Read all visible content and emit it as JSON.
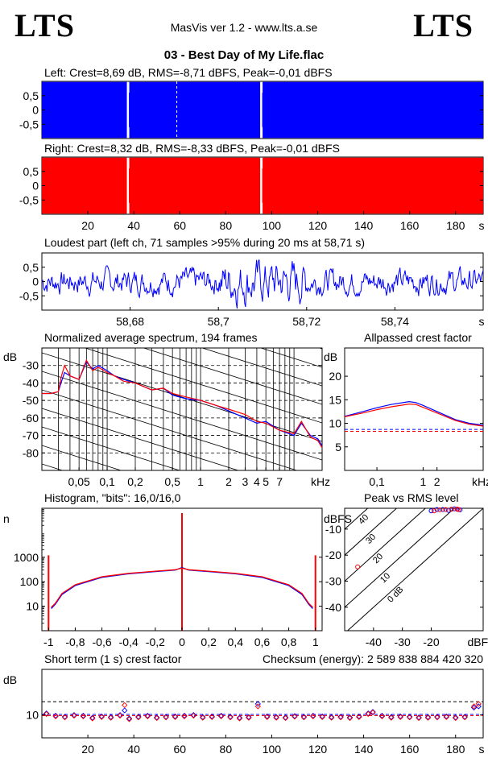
{
  "header": {
    "logo_left": "LTS",
    "logo_right": "LTS",
    "app_title": "MasVis ver 1.2 - www.lts.a.se",
    "file_title": "03 - Best Day of My Life.flac"
  },
  "colors": {
    "left": "#0000ff",
    "right": "#ff0000",
    "grid": "#000000",
    "background": "#ffffff"
  },
  "chart_data": [
    {
      "id": "left-waveform",
      "type": "area",
      "title": "Left: Crest=8,69 dB, RMS=-8,71 dBFS, Peak=-0,01 dBFS",
      "ytick_labels": [
        "0,5",
        "0",
        "-0,5"
      ],
      "yticks": [
        0.5,
        0,
        -0.5
      ],
      "ylim": [
        -1,
        1
      ],
      "xlim": [
        0,
        192
      ],
      "series": [
        {
          "values": [
            0.98,
            0.98
          ]
        }
      ],
      "gaps_s": [
        37.5,
        95.5
      ],
      "dashed_marker_s": 58.71,
      "grid": false
    },
    {
      "id": "right-waveform",
      "type": "area",
      "title": "Right: Crest=8,32 dB, RMS=-8,33 dBFS, Peak=-0,01 dBFS",
      "ytick_labels": [
        "0,5",
        "0",
        "-0,5"
      ],
      "yticks": [
        0.5,
        0,
        -0.5
      ],
      "ylim": [
        -1,
        1
      ],
      "xlim": [
        0,
        192
      ],
      "xticks": [
        20,
        40,
        60,
        80,
        100,
        120,
        140,
        160,
        180
      ],
      "xtick_labels": [
        "20",
        "40",
        "60",
        "80",
        "100",
        "120",
        "140",
        "160",
        "180"
      ],
      "xunit": "s",
      "series": [
        {
          "values": [
            0.98,
            0.98
          ]
        }
      ],
      "gaps_s": [
        37.5,
        95.5
      ],
      "grid": false
    },
    {
      "id": "loudest-part",
      "type": "line",
      "title": "Loudest part (left  ch, 71 samples >95% during 20 ms at 58,71 s)",
      "ytick_labels": [
        "0,5",
        "0",
        "-0,5"
      ],
      "yticks": [
        0.5,
        0,
        -0.5
      ],
      "ylim": [
        -1,
        1
      ],
      "xlim": [
        58.66,
        58.76
      ],
      "xticks": [
        58.68,
        58.7,
        58.72,
        58.74
      ],
      "xtick_labels": [
        "58,68",
        "58,7",
        "58,72",
        "58,74"
      ],
      "xunit": "s",
      "grid": false
    },
    {
      "id": "spectrum",
      "type": "line",
      "title": "Normalized average spectrum, 194 frames",
      "ylabel": "dB",
      "ytick_labels": [
        "-30",
        "-40",
        "-50",
        "-60",
        "-70",
        "-80"
      ],
      "yticks": [
        -30,
        -40,
        -50,
        -60,
        -70,
        -80
      ],
      "ylim": [
        -90,
        -20
      ],
      "xscale": "log",
      "xlim": [
        0.02,
        20
      ],
      "xticks": [
        0.05,
        0.1,
        0.2,
        0.5,
        1,
        2,
        3,
        4,
        5,
        7
      ],
      "xtick_labels": [
        "0,05",
        "0,1",
        "0,2",
        "0,5",
        "1",
        "2",
        "3",
        "4",
        "5",
        "7"
      ],
      "xunit": "kHz",
      "series": [
        {
          "x": [
            0.02,
            0.025,
            0.03,
            0.032,
            0.035,
            0.04,
            0.05,
            0.06,
            0.07,
            0.08,
            0.1,
            0.12,
            0.15,
            0.2,
            0.3,
            0.4,
            0.5,
            0.7,
            1,
            1.5,
            2,
            3,
            4,
            5,
            7,
            10,
            12,
            15,
            18,
            20
          ],
          "values": [
            -46,
            -46,
            -45,
            -40,
            -34,
            -36,
            -38,
            -28,
            -32,
            -30,
            -33,
            -36,
            -38,
            -40,
            -44,
            -43,
            -47,
            -49,
            -50,
            -53,
            -56,
            -60,
            -63,
            -62,
            -67,
            -70,
            -63,
            -70,
            -72,
            -76
          ]
        },
        {
          "x": [
            0.02,
            0.025,
            0.03,
            0.032,
            0.035,
            0.04,
            0.05,
            0.06,
            0.07,
            0.08,
            0.1,
            0.12,
            0.15,
            0.2,
            0.3,
            0.4,
            0.5,
            0.7,
            1,
            1.5,
            2,
            3,
            4,
            5,
            7,
            10,
            12,
            15,
            18,
            20
          ],
          "values": [
            -46,
            -46,
            -45,
            -37,
            -30,
            -36,
            -38,
            -27,
            -33,
            -31,
            -34,
            -36,
            -39,
            -40,
            -44,
            -43,
            -46,
            -48,
            -50,
            -53,
            -55,
            -58,
            -62,
            -63,
            -67,
            -69,
            -62,
            -71,
            -73,
            -77
          ]
        }
      ],
      "grid": true
    },
    {
      "id": "allpass-crest",
      "type": "line",
      "title": "Allpassed crest factor",
      "ylabel": "dB",
      "ytick_labels": [
        "20",
        "15",
        "10",
        "5"
      ],
      "yticks": [
        20,
        15,
        10,
        5
      ],
      "ylim": [
        0,
        26
      ],
      "xscale": "log",
      "xlim": [
        0.02,
        20
      ],
      "xticks": [
        0.1,
        1,
        2
      ],
      "xtick_labels": [
        "0,1",
        "1",
        "2"
      ],
      "xunit": "kHz",
      "series": [
        {
          "x": [
            0.02,
            0.05,
            0.1,
            0.2,
            0.5,
            0.7,
            1,
            2,
            5,
            10,
            20
          ],
          "values": [
            11.5,
            12.5,
            13.3,
            14.0,
            14.6,
            14.4,
            13.8,
            12.5,
            10.8,
            10.0,
            9.6
          ]
        },
        {
          "x": [
            0.02,
            0.05,
            0.1,
            0.2,
            0.5,
            0.7,
            1,
            2,
            5,
            10,
            20
          ],
          "values": [
            11.4,
            12.2,
            12.9,
            13.5,
            14.1,
            14.0,
            13.4,
            12.2,
            10.6,
            9.8,
            9.4
          ]
        }
      ],
      "reference_lines": [
        8.7,
        8.3
      ],
      "grid": false
    },
    {
      "id": "histogram",
      "type": "line",
      "title": "Histogram, \"bits\": 16,0/16,0",
      "ylabel": "n",
      "ytick_labels": [
        "1000",
        "100",
        "10"
      ],
      "yticks": [
        1000,
        100,
        10
      ],
      "yscale": "log",
      "ylim": [
        1,
        100000
      ],
      "xlim": [
        -1.05,
        1.05
      ],
      "xticks": [
        -1,
        -0.8,
        -0.6,
        -0.4,
        -0.2,
        0,
        0.2,
        0.4,
        0.6,
        0.8,
        1
      ],
      "xtick_labels": [
        "-1",
        "-0,8",
        "-0,6",
        "-0,4",
        "-0,2",
        "0",
        "0,2",
        "0,4",
        "0,6",
        "0,8",
        "1"
      ],
      "series": [
        {
          "x": [
            -0.98,
            -0.95,
            -0.9,
            -0.8,
            -0.6,
            -0.4,
            -0.2,
            -0.05,
            0,
            0.05,
            0.2,
            0.4,
            0.6,
            0.8,
            0.9,
            0.95,
            0.98
          ],
          "values": [
            8,
            12,
            30,
            70,
            150,
            210,
            260,
            300,
            380,
            300,
            260,
            210,
            150,
            70,
            30,
            12,
            8
          ]
        },
        {
          "x": [
            -0.98,
            -0.95,
            -0.9,
            -0.8,
            -0.6,
            -0.4,
            -0.2,
            -0.05,
            0,
            0.05,
            0.2,
            0.4,
            0.6,
            0.8,
            0.9,
            0.95,
            0.98
          ],
          "values": [
            9,
            13,
            33,
            75,
            160,
            220,
            270,
            310,
            360,
            310,
            270,
            220,
            160,
            75,
            33,
            13,
            9
          ]
        }
      ],
      "spikes": [
        -1,
        0,
        1
      ],
      "grid": false
    },
    {
      "id": "peak-vs-rms",
      "type": "scatter",
      "title": "Peak vs RMS level",
      "ylabel": "dBFS",
      "xunit": "dBFS",
      "ytick_labels": [
        "-10",
        "-20",
        "-30",
        "-40"
      ],
      "yticks": [
        -10,
        -20,
        -30,
        -40
      ],
      "xticks": [
        -40,
        -30,
        -20
      ],
      "xtick_labels": [
        "-40",
        "-30",
        "-20"
      ],
      "xlim": [
        -50,
        -2
      ],
      "ylim": [
        -49,
        -2
      ],
      "diagonal_labels": [
        "40",
        "30",
        "20",
        "10",
        "0 dB"
      ],
      "diagonals": [
        40,
        30,
        20,
        10,
        0
      ],
      "series": [
        {
          "x": [
            -20,
            -18,
            -16,
            -14,
            -12,
            -11,
            -10
          ],
          "values": [
            -3,
            -2.5,
            -2.5,
            -2.8,
            -2.2,
            -2.4,
            -2.6
          ]
        },
        {
          "x": [
            -45.5,
            -19,
            -17,
            -15,
            -13,
            -11,
            -10.5
          ],
          "values": [
            -24.5,
            -3,
            -2.6,
            -2.5,
            -2.4,
            -2.3,
            -2.5
          ]
        }
      ],
      "grid": false
    },
    {
      "id": "short-term-crest",
      "type": "scatter",
      "title": "Short term (1 s) crest factor",
      "checksum": "Checksum (energy):  2 589 838 884 420 320",
      "ylabel": "dB",
      "ytick_labels": [
        "10"
      ],
      "yticks": [
        10
      ],
      "yscale": "log",
      "ylim": [
        5,
        40
      ],
      "xlim": [
        0,
        192
      ],
      "xticks": [
        20,
        40,
        60,
        80,
        100,
        120,
        140,
        160,
        180
      ],
      "xtick_labels": [
        "20",
        "40",
        "60",
        "80",
        "100",
        "120",
        "140",
        "160",
        "180"
      ],
      "xunit": "s",
      "reference_lines": [
        10.2,
        9.8
      ],
      "reference_upper": 15,
      "series": [
        {
          "x": [
            2,
            6,
            10,
            14,
            18,
            22,
            26,
            30,
            34,
            36,
            38,
            42,
            46,
            50,
            54,
            58,
            62,
            66,
            70,
            74,
            78,
            82,
            86,
            90,
            94,
            98,
            102,
            106,
            110,
            114,
            118,
            122,
            126,
            130,
            134,
            138,
            142,
            144,
            148,
            152,
            156,
            160,
            164,
            168,
            172,
            176,
            180,
            184,
            188,
            190
          ],
          "values": [
            10.5,
            9.8,
            9.5,
            10,
            9.8,
            9.2,
            9.6,
            9.4,
            10,
            11.5,
            9,
            9.5,
            9.8,
            9.3,
            9.5,
            9.6,
            9.8,
            10,
            9.4,
            9.6,
            9.8,
            9.5,
            9.2,
            9.4,
            14,
            9.6,
            9.4,
            9.3,
            9.7,
            9.5,
            9.8,
            9.6,
            9.4,
            9.5,
            9.3,
            9.6,
            10.5,
            11,
            9.8,
            9.4,
            9.6,
            9.5,
            9.3,
            9.4,
            9.5,
            9.6,
            9.3,
            9.5,
            12.5,
            13
          ]
        },
        {
          "x": [
            2,
            6,
            10,
            14,
            18,
            22,
            26,
            30,
            34,
            36,
            38,
            42,
            46,
            50,
            54,
            58,
            62,
            66,
            70,
            74,
            78,
            82,
            86,
            90,
            94,
            98,
            102,
            106,
            110,
            114,
            118,
            122,
            126,
            130,
            134,
            138,
            142,
            144,
            148,
            152,
            156,
            160,
            164,
            168,
            172,
            176,
            180,
            184,
            188,
            190
          ],
          "values": [
            10.3,
            9.6,
            9.3,
            9.8,
            9.6,
            9.0,
            9.4,
            9.2,
            9.8,
            13.5,
            8.8,
            9.3,
            9.6,
            9.1,
            9.3,
            9.4,
            9.6,
            9.8,
            9.2,
            9.4,
            9.6,
            9.3,
            9.0,
            9.2,
            13,
            9.4,
            9.2,
            9.1,
            9.5,
            9.3,
            9.6,
            9.4,
            9.2,
            9.3,
            9.1,
            9.4,
            10.3,
            10.8,
            9.6,
            9.2,
            9.4,
            9.3,
            9.1,
            9.2,
            9.3,
            9.4,
            9.1,
            9.3,
            13,
            14
          ]
        }
      ],
      "grid": false
    }
  ]
}
